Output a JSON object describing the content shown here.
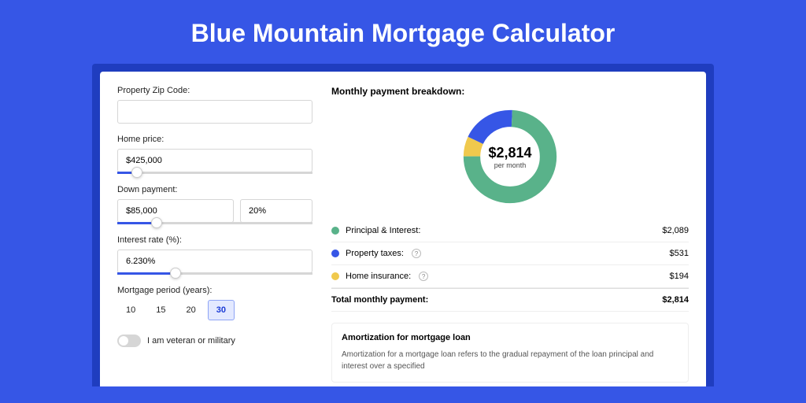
{
  "page": {
    "title": "Blue Mountain Mortgage Calculator"
  },
  "colors": {
    "page_bg": "#3656e6",
    "container_bg": "#1f3dbf",
    "principal": "#59b28a",
    "taxes": "#3656e6",
    "insurance": "#f0c94d"
  },
  "form": {
    "zip_label": "Property Zip Code:",
    "zip_value": "",
    "home_price_label": "Home price:",
    "home_price_value": "$425,000",
    "home_price_slider_pct": 10,
    "down_payment_label": "Down payment:",
    "down_payment_value": "$85,000",
    "down_payment_pct": "20%",
    "down_payment_slider_pct": 20,
    "interest_label": "Interest rate (%):",
    "interest_value": "6.230%",
    "interest_slider_pct": 30,
    "period_label": "Mortgage period (years):",
    "periods": [
      "10",
      "15",
      "20",
      "30"
    ],
    "period_selected": "30",
    "veteran_label": "I am veteran or military",
    "veteran_on": false
  },
  "chart": {
    "title": "Monthly payment breakdown:",
    "center_value": "$2,814",
    "center_sub": "per month",
    "segments": [
      {
        "label": "Principal & Interest:",
        "value": "$2,089",
        "color": "#59b28a",
        "pct": 74.2
      },
      {
        "label": "Property taxes:",
        "value": "$531",
        "color": "#3656e6",
        "pct": 18.9,
        "info": true
      },
      {
        "label": "Home insurance:",
        "value": "$194",
        "color": "#f0c94d",
        "pct": 6.9,
        "info": true
      }
    ],
    "total_label": "Total monthly payment:",
    "total_value": "$2,814"
  },
  "amortization": {
    "title": "Amortization for mortgage loan",
    "text": "Amortization for a mortgage loan refers to the gradual repayment of the loan principal and interest over a specified"
  }
}
